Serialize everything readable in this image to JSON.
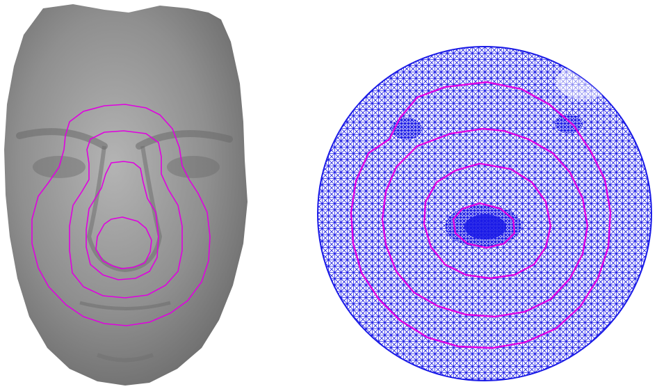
{
  "figure": {
    "panels": [
      {
        "id": "face-surface",
        "kind": "3D face surface with geodesic iso-contours",
        "contour_count": 4
      },
      {
        "id": "flattened-mesh",
        "kind": "disk-parameterized triangle mesh with mapped iso-contours",
        "contour_count": 4
      }
    ]
  },
  "colors": {
    "background": "#ffffff",
    "face_shade": "#8f8f8f",
    "face_highlight": "#b4b4b4",
    "face_shadow": "#6a6a6a",
    "contour": "#e000e0",
    "mesh_line": "#1a1ae6",
    "mesh_fill": "#ffffff"
  }
}
